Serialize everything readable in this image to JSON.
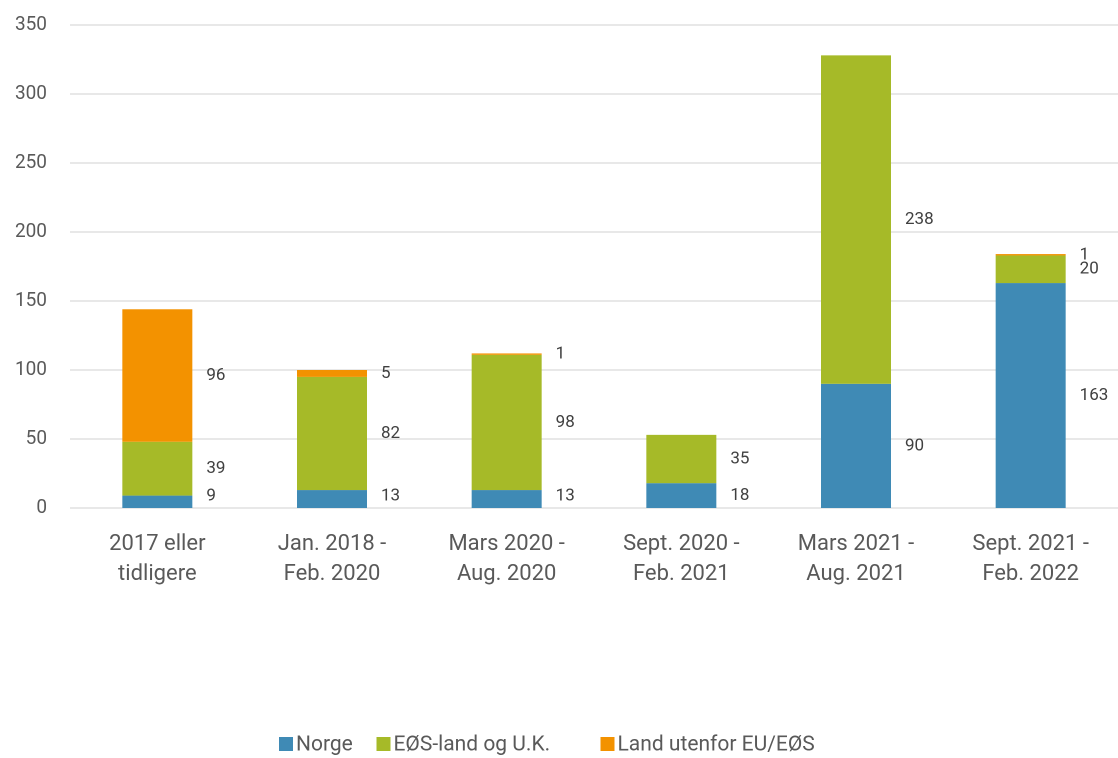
{
  "chart_data": {
    "type": "bar",
    "stacked": true,
    "categories": [
      "2017 eller\ntidligere",
      "Jan. 2018 -\nFeb. 2020",
      "Mars 2020 -\nAug. 2020",
      "Sept. 2020 -\nFeb. 2021",
      "Mars 2021 -\nAug. 2021",
      "Sept. 2021 -\nFeb. 2022"
    ],
    "series": [
      {
        "name": "Norge",
        "color": "#3f8ab5",
        "values": [
          9,
          13,
          13,
          18,
          90,
          163
        ]
      },
      {
        "name": "EØS-land og U.K.",
        "color": "#a6ba28",
        "values": [
          39,
          82,
          98,
          35,
          238,
          20
        ]
      },
      {
        "name": "Land utenfor EU/EØS",
        "color": "#f39200",
        "values": [
          96,
          5,
          1,
          null,
          null,
          1
        ]
      }
    ],
    "ylim": [
      0,
      350
    ],
    "yticks": [
      0,
      50,
      100,
      150,
      200,
      250,
      300,
      350
    ],
    "grid": true,
    "legend": "bottom"
  }
}
